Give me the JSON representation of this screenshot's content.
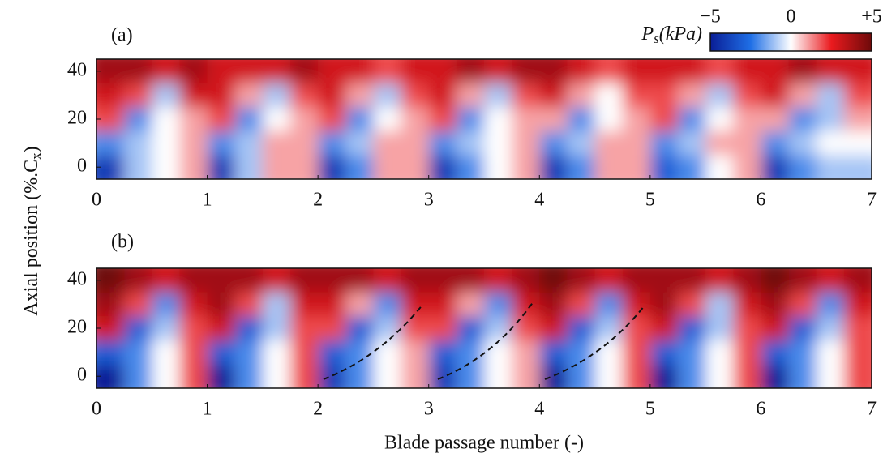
{
  "chart_data": [
    {
      "type": "heatmap",
      "panel_label": "(a)",
      "ylabel": {
        "text": "Axial position (%.C",
        "subscript": "x",
        "close": ")"
      },
      "colorbar": {
        "symbol": "P",
        "subscript": "s",
        "unit": "(kPa)",
        "lim": [
          -5,
          5
        ],
        "ticks": [
          {
            "value": -5,
            "label": "−5"
          },
          0,
          {
            "value": 5,
            "label": "+5"
          }
        ]
      },
      "xlim": [
        0,
        7
      ],
      "xticks": [
        0,
        1,
        2,
        3,
        4,
        5,
        6,
        7
      ],
      "ylim": [
        -5,
        45
      ],
      "yticks": [
        0,
        20,
        40
      ],
      "x": [
        0.125,
        0.375,
        0.625,
        0.875,
        1.125,
        1.375,
        1.625,
        1.875,
        2.125,
        2.375,
        2.625,
        2.875,
        3.125,
        3.375,
        3.625,
        3.875,
        4.125,
        4.375,
        4.625,
        4.875,
        5.125,
        5.375,
        5.625,
        5.875,
        6.125,
        6.375,
        6.625,
        6.875
      ],
      "y": [
        40,
        30,
        20,
        10,
        0
      ],
      "z": [
        [
          4,
          4,
          3,
          4,
          3,
          3,
          3,
          4,
          3,
          3,
          2,
          3,
          3,
          4,
          3,
          4,
          4,
          3,
          2,
          3,
          3,
          3,
          2,
          3,
          3,
          4,
          3,
          3
        ],
        [
          3,
          2,
          -1,
          3,
          3,
          1,
          -1,
          2,
          3,
          1,
          -1,
          2,
          3,
          1,
          -1,
          2,
          3,
          1,
          0,
          2,
          2,
          1,
          -1,
          2,
          3,
          1,
          -1,
          2
        ],
        [
          2,
          -2,
          0,
          1,
          2,
          -2,
          0,
          1,
          2,
          -2,
          0,
          1,
          2,
          -2,
          0,
          1,
          1,
          -2,
          0,
          1,
          2,
          -2,
          0,
          1,
          1,
          -2,
          -1,
          1
        ],
        [
          -2,
          -1,
          0,
          1,
          -2,
          -1,
          1,
          1,
          -2,
          -1,
          1,
          1,
          -2,
          -1,
          0,
          1,
          -2,
          -1,
          1,
          1,
          -2,
          -1,
          1,
          1,
          -2,
          -1,
          0,
          0
        ],
        [
          -4,
          -1,
          0,
          1,
          -4,
          -1,
          1,
          1,
          -4,
          -2,
          1,
          1,
          -4,
          -2,
          0,
          1,
          -4,
          -2,
          1,
          1,
          -3,
          -2,
          0,
          1,
          -4,
          -2,
          -1,
          -1
        ]
      ]
    },
    {
      "type": "heatmap",
      "panel_label": "(b)",
      "xlabel": "Blade passage number (-)",
      "xlim": [
        0,
        7
      ],
      "xticks": [
        0,
        1,
        2,
        3,
        4,
        5,
        6,
        7
      ],
      "ylim": [
        -5,
        45
      ],
      "yticks": [
        0,
        20,
        40
      ],
      "x": [
        0.125,
        0.375,
        0.625,
        0.875,
        1.125,
        1.375,
        1.625,
        1.875,
        2.125,
        2.375,
        2.625,
        2.875,
        3.125,
        3.375,
        3.625,
        3.875,
        4.125,
        4.375,
        4.625,
        4.875,
        5.125,
        5.375,
        5.625,
        5.875,
        6.125,
        6.375,
        6.625,
        6.875
      ],
      "y": [
        40,
        30,
        20,
        10,
        0
      ],
      "z": [
        [
          5,
          4,
          3,
          4,
          4,
          4,
          3,
          4,
          4,
          4,
          3,
          4,
          4,
          4,
          3,
          4,
          5,
          4,
          3,
          4,
          4,
          4,
          3,
          4,
          5,
          4,
          3,
          4
        ],
        [
          4,
          2,
          -2,
          3,
          4,
          2,
          -1,
          3,
          3,
          1,
          -2,
          3,
          3,
          1,
          -2,
          3,
          4,
          2,
          -2,
          3,
          4,
          2,
          -1,
          3,
          4,
          2,
          -2,
          3
        ],
        [
          3,
          -3,
          -1,
          2,
          3,
          -3,
          -1,
          2,
          2,
          -3,
          -1,
          2,
          2,
          -3,
          -1,
          2,
          3,
          -3,
          -1,
          2,
          3,
          -3,
          -1,
          2,
          3,
          -3,
          -1,
          2
        ],
        [
          -3,
          -2,
          0,
          2,
          -3,
          -2,
          0,
          2,
          -3,
          -2,
          0,
          1,
          -3,
          -2,
          0,
          1,
          -3,
          -2,
          0,
          2,
          -3,
          -2,
          0,
          2,
          -3,
          -2,
          0,
          2
        ],
        [
          -5,
          -2,
          0,
          2,
          -5,
          -2,
          0,
          2,
          -4,
          -2,
          0,
          1,
          -4,
          -2,
          0,
          1,
          -5,
          -2,
          0,
          2,
          -5,
          -2,
          0,
          2,
          -5,
          -2,
          0,
          2
        ]
      ]
    }
  ]
}
